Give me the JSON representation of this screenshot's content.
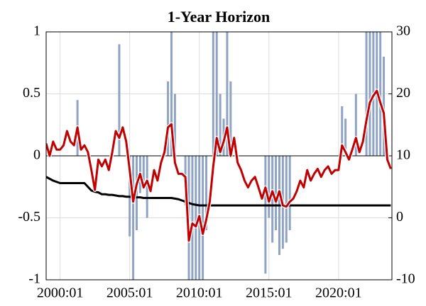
{
  "chart_data": {
    "type": "combo",
    "title": "1-Year Horizon",
    "x": [
      "1999:01",
      "1999:04",
      "1999:07",
      "1999:10",
      "2000:01",
      "2000:04",
      "2000:07",
      "2000:10",
      "2001:01",
      "2001:04",
      "2001:07",
      "2001:10",
      "2002:01",
      "2002:04",
      "2002:07",
      "2002:10",
      "2003:01",
      "2003:04",
      "2003:07",
      "2003:10",
      "2004:01",
      "2004:04",
      "2004:07",
      "2004:10",
      "2005:01",
      "2005:04",
      "2005:07",
      "2005:10",
      "2006:01",
      "2006:04",
      "2006:07",
      "2006:10",
      "2007:01",
      "2007:04",
      "2007:07",
      "2007:10",
      "2008:01",
      "2008:04",
      "2008:07",
      "2008:10",
      "2009:01",
      "2009:04",
      "2009:07",
      "2009:10",
      "2010:01",
      "2010:04",
      "2010:07",
      "2010:10",
      "2011:01",
      "2011:04",
      "2011:07",
      "2011:10",
      "2012:01",
      "2012:04",
      "2012:07",
      "2012:10",
      "2013:01",
      "2013:04",
      "2013:07",
      "2013:10",
      "2014:01",
      "2014:04",
      "2014:07",
      "2014:10",
      "2015:01",
      "2015:04",
      "2015:07",
      "2015:10",
      "2016:01",
      "2016:04",
      "2016:07",
      "2016:10",
      "2017:01",
      "2017:04",
      "2017:07",
      "2017:10",
      "2018:01",
      "2018:04",
      "2018:07",
      "2018:10",
      "2019:01",
      "2019:04",
      "2019:07",
      "2019:10",
      "2020:01",
      "2020:04",
      "2020:07",
      "2020:10",
      "2021:01",
      "2021:04",
      "2021:07",
      "2021:10",
      "2022:01",
      "2022:04",
      "2022:07",
      "2022:10",
      "2023:01",
      "2023:04",
      "2023:07",
      "2023:10"
    ],
    "series": [
      {
        "type": "bar",
        "color": "#8fa3c4",
        "values": [
          null,
          null,
          null,
          null,
          null,
          null,
          null,
          null,
          null,
          0.45,
          null,
          null,
          null,
          null,
          null,
          null,
          null,
          null,
          null,
          null,
          null,
          0.9,
          null,
          null,
          -0.65,
          -1,
          -0.6,
          -0.3,
          -0.2,
          -0.5,
          null,
          null,
          null,
          null,
          null,
          0.6,
          1,
          0.5,
          null,
          null,
          -0.4,
          -1,
          -1,
          -1,
          -1,
          -1,
          -0.6,
          null,
          1,
          1,
          0.5,
          0.3,
          1,
          0.6,
          null,
          null,
          null,
          null,
          null,
          null,
          null,
          null,
          null,
          -0.95,
          -0.5,
          -0.7,
          -0.6,
          -0.8,
          -0.75,
          -0.7,
          -0.6,
          null,
          null,
          null,
          null,
          null,
          null,
          null,
          null,
          null,
          null,
          null,
          null,
          null,
          null,
          0.4,
          0.3,
          null,
          null,
          0.5,
          null,
          null,
          1,
          1,
          1,
          1,
          1,
          0.8,
          null,
          null
        ]
      },
      {
        "type": "line",
        "color": "#000000",
        "axis": "y2",
        "values": [
          6.6,
          6.3,
          6.0,
          5.8,
          5.6,
          5.6,
          5.6,
          5.6,
          5.6,
          5.6,
          5.6,
          5.6,
          5.0,
          4.4,
          4.2,
          4.1,
          3.8,
          3.8,
          3.7,
          3.7,
          3.6,
          3.5,
          3.5,
          3.4,
          3.4,
          3.3,
          3.3,
          3.3,
          3.2,
          3.2,
          3.2,
          3.2,
          3.2,
          3.2,
          3.2,
          3.2,
          3.2,
          3.1,
          3.0,
          2.8,
          2.6,
          2.4,
          2.2,
          2.1,
          2,
          2,
          2,
          2,
          2,
          2,
          2,
          2,
          2,
          2,
          2,
          2,
          2,
          2,
          2,
          2,
          2,
          2,
          2,
          2,
          2,
          2,
          2,
          2,
          2,
          2,
          2,
          2,
          2,
          2,
          2,
          2,
          2,
          2,
          2,
          2,
          2,
          2,
          2,
          2,
          2,
          2,
          2,
          2,
          2,
          2,
          2,
          2,
          2,
          2,
          2,
          2,
          2,
          2,
          2,
          2
        ]
      },
      {
        "type": "line",
        "color": "#c00000",
        "axis": "y2",
        "values": [
          12,
          10,
          12.3,
          11,
          11,
          11.7,
          14,
          12.3,
          11.7,
          14.6,
          11,
          11.7,
          10.6,
          7.7,
          4.5,
          9.4,
          8.3,
          9.4,
          7.7,
          10.6,
          14,
          12.9,
          14.6,
          12.3,
          7.7,
          2.6,
          5.4,
          7.1,
          4.9,
          6,
          4.3,
          7.7,
          6,
          8.9,
          10.6,
          14.6,
          15.1,
          8.9,
          7.1,
          7.1,
          6.6,
          -3.7,
          -0.9,
          -1.4,
          0.3,
          -2.6,
          -0.3,
          2.6,
          8.3,
          12.9,
          10.6,
          12.3,
          14.6,
          10,
          12.9,
          8.9,
          7.7,
          6,
          4.9,
          6,
          6.6,
          4.9,
          3.1,
          4.9,
          2.6,
          4.3,
          2.6,
          4.3,
          2,
          1.8,
          2.6,
          3.1,
          4.3,
          6,
          4.9,
          7.7,
          6,
          7.1,
          7.9,
          6.6,
          7.7,
          8.3,
          7.1,
          7.7,
          7.7,
          11.7,
          10.6,
          9.4,
          11.1,
          12.9,
          10.6,
          12.3,
          15.7,
          18.6,
          19.7,
          20.5,
          18.6,
          16.9,
          9.4,
          7.9
        ]
      }
    ],
    "xlim": [
      "1999:01",
      "2023:11"
    ],
    "xticks": [
      "2000:01",
      "2005:01",
      "2010:01",
      "2015:01",
      "2020:01"
    ],
    "ylim": [
      -1,
      1
    ],
    "yticks": [
      -1,
      -0.5,
      0,
      0.5,
      1
    ],
    "y2lim": [
      -10,
      30
    ],
    "y2ticks": [
      -10,
      0,
      10,
      20,
      30
    ],
    "grid": true
  }
}
